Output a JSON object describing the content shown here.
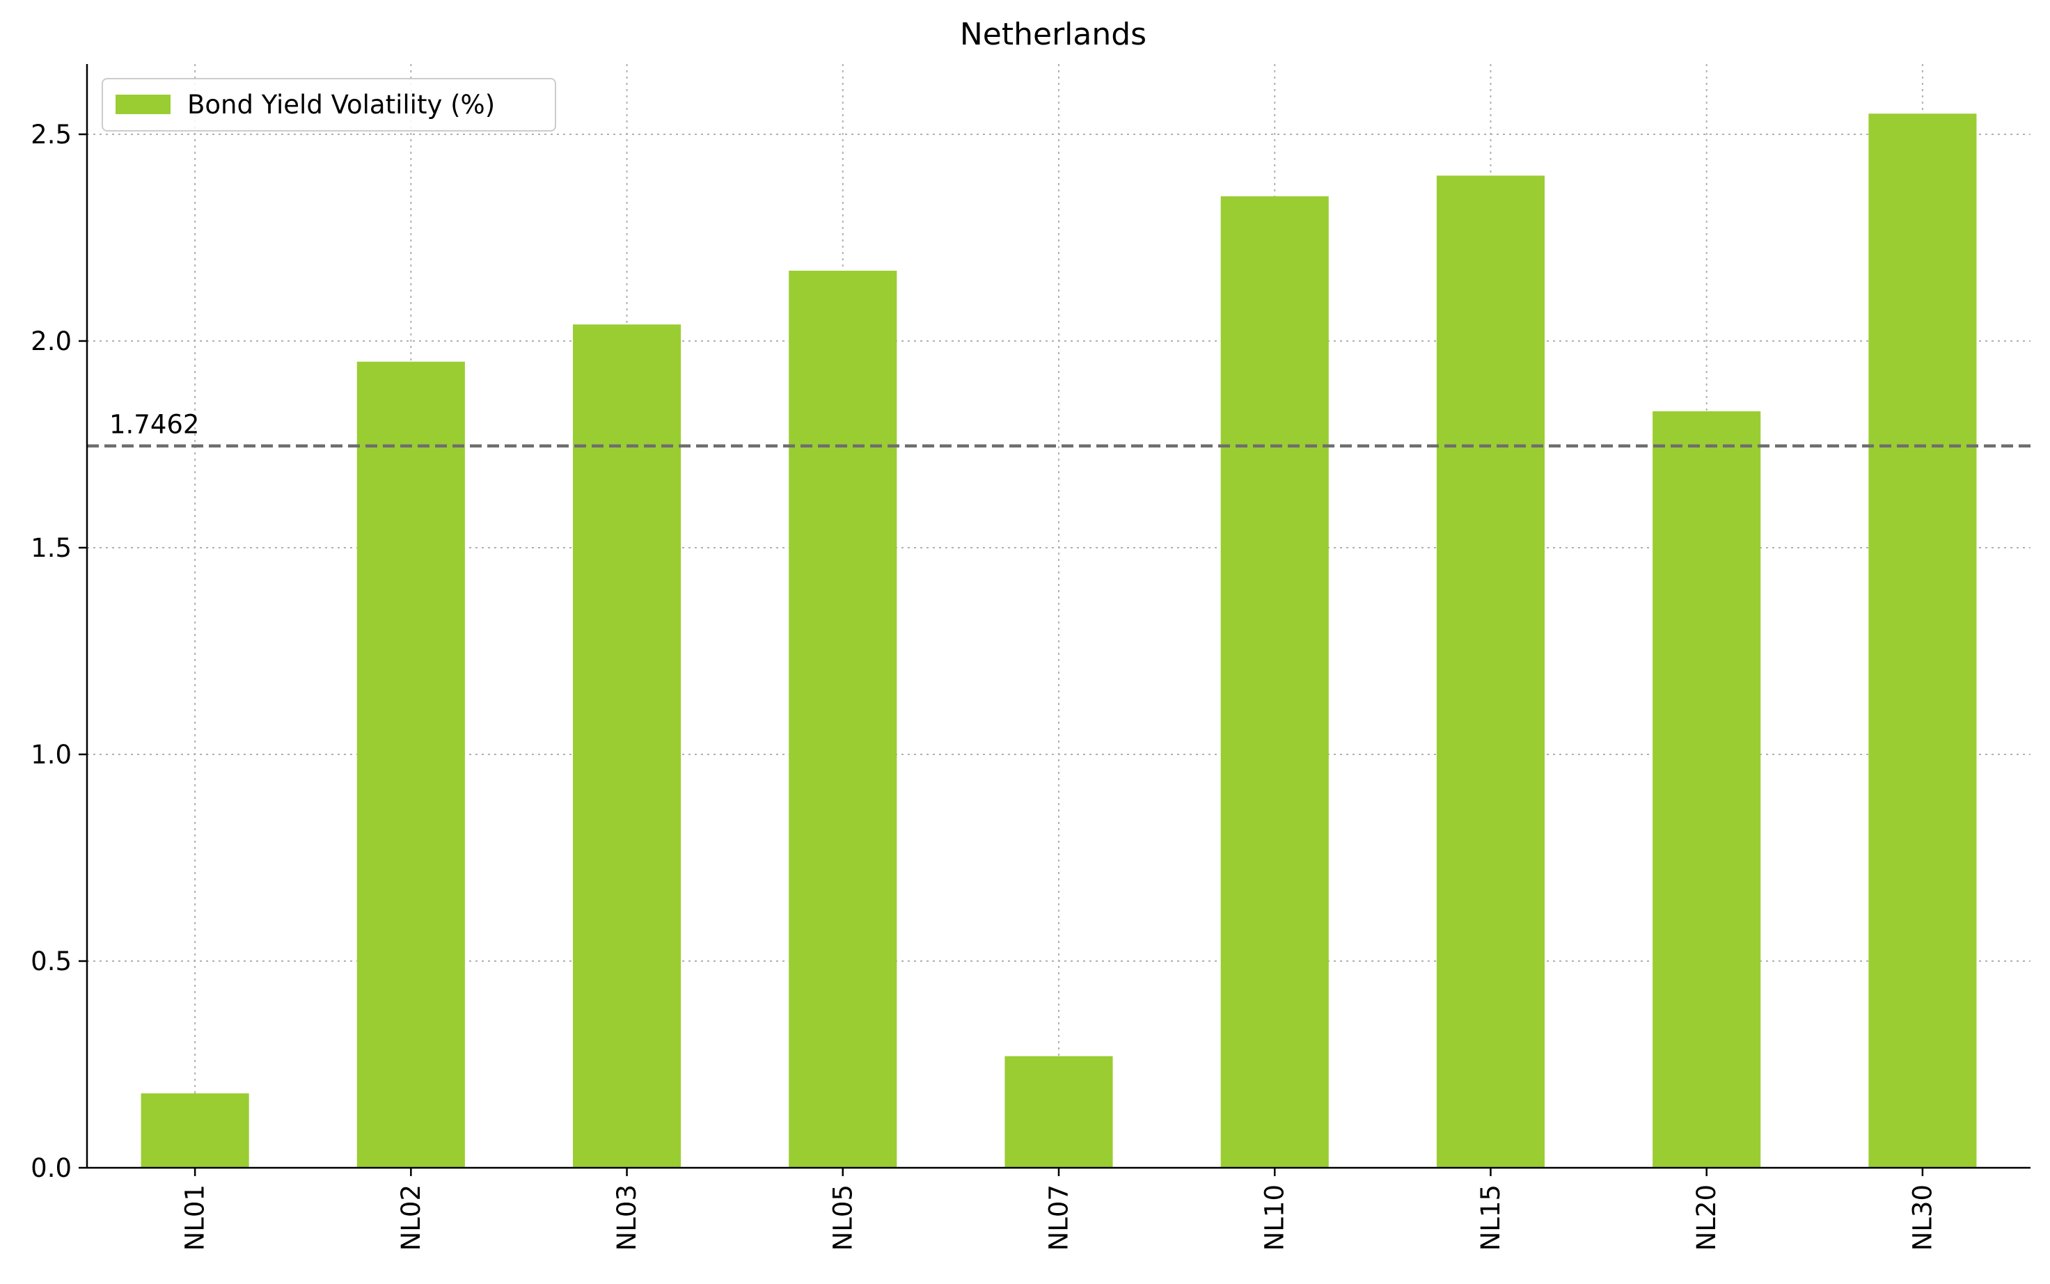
{
  "chart_data": {
    "type": "bar",
    "title": "Netherlands",
    "xlabel": "",
    "ylabel": "",
    "categories": [
      "NL01",
      "NL02",
      "NL03",
      "NL05",
      "NL07",
      "NL10",
      "NL15",
      "NL20",
      "NL30"
    ],
    "series": [
      {
        "name": "Bond Yield Volatility (%)",
        "values": [
          0.18,
          1.95,
          2.04,
          2.17,
          0.27,
          2.35,
          2.4,
          1.83,
          2.55
        ],
        "color": "#9acd32"
      }
    ],
    "ylim": [
      0,
      2.67
    ],
    "yticks": [
      0.0,
      0.5,
      1.0,
      1.5,
      2.0,
      2.5
    ],
    "ytick_labels": [
      "0.0",
      "0.5",
      "1.0",
      "1.5",
      "2.0",
      "2.5"
    ],
    "reference_line": {
      "value": 1.7462,
      "label": "1.7462",
      "style": "dashed",
      "color": "#6e6e6e"
    },
    "grid": true,
    "legend": {
      "placement": "upper-left",
      "entries": [
        "Bond Yield Volatility (%)"
      ]
    },
    "xtick_rotation": "vertical"
  }
}
